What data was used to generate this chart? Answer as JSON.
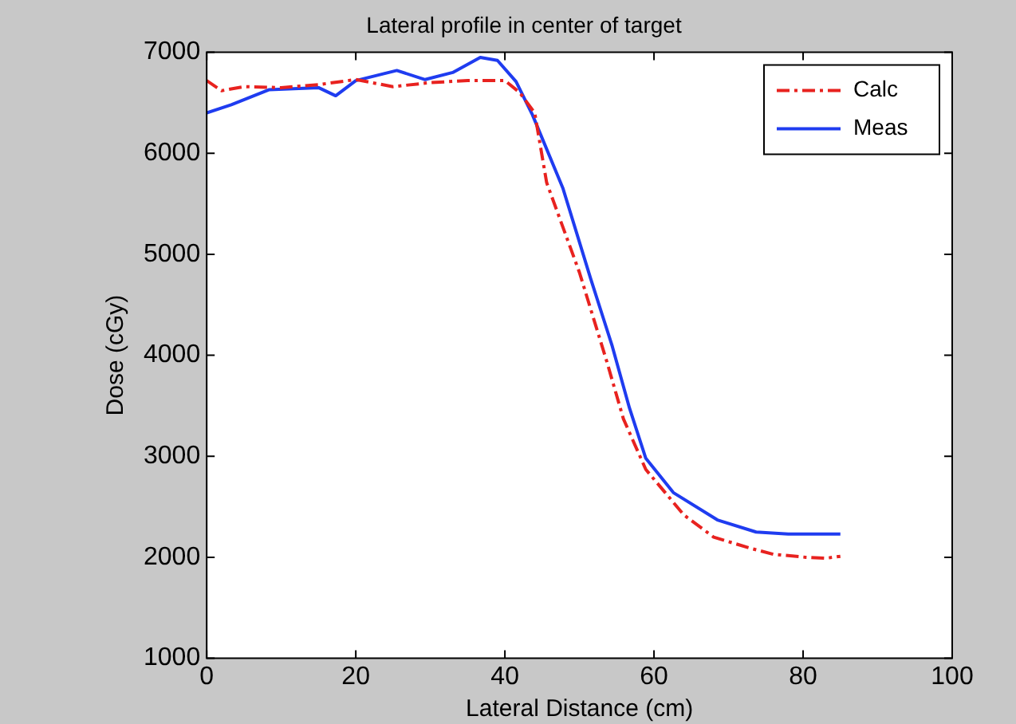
{
  "chart_data": {
    "type": "line",
    "title": "Lateral profile in center of target",
    "xlabel": "Lateral Distance (cm)",
    "ylabel": "Dose (cGy)",
    "xlim": [
      0,
      100
    ],
    "xticks": [
      0,
      20,
      40,
      60,
      80,
      100
    ],
    "ylim": [
      1000,
      7000
    ],
    "yticks": [
      1000,
      2000,
      3000,
      4000,
      5000,
      6000,
      7000
    ],
    "legend": "top right",
    "grid": false,
    "series": [
      {
        "name": "Calc",
        "color": "#e8221f",
        "line_style": "dashed",
        "x": [
          0,
          2,
          5,
          10,
          15,
          20,
          25,
          30,
          35,
          40,
          42,
          44,
          45.6,
          50,
          53.7,
          55.9,
          58.9,
          64,
          68,
          72.9,
          76,
          80.4,
          83,
          85
        ],
        "values": [
          6720,
          6620,
          6660,
          6650,
          6680,
          6730,
          6660,
          6700,
          6720,
          6720,
          6600,
          6400,
          5710,
          4820,
          3930,
          3370,
          2870,
          2420,
          2200,
          2090,
          2030,
          2000,
          1990,
          2010
        ]
      },
      {
        "name": "Meas",
        "color": "#1f3cf0",
        "line_style": "solid",
        "x": [
          0,
          3.3,
          8.4,
          15,
          17.3,
          20,
          25.5,
          29.3,
          33,
          36.7,
          39,
          41.5,
          43.7,
          47.8,
          51.5,
          54.4,
          56.7,
          58.9,
          62.6,
          68.5,
          73.7,
          78,
          85
        ],
        "values": [
          6400,
          6480,
          6630,
          6650,
          6570,
          6720,
          6820,
          6730,
          6800,
          6950,
          6920,
          6710,
          6380,
          5650,
          4760,
          4090,
          3480,
          2980,
          2640,
          2370,
          2250,
          2230,
          2230
        ]
      }
    ]
  }
}
